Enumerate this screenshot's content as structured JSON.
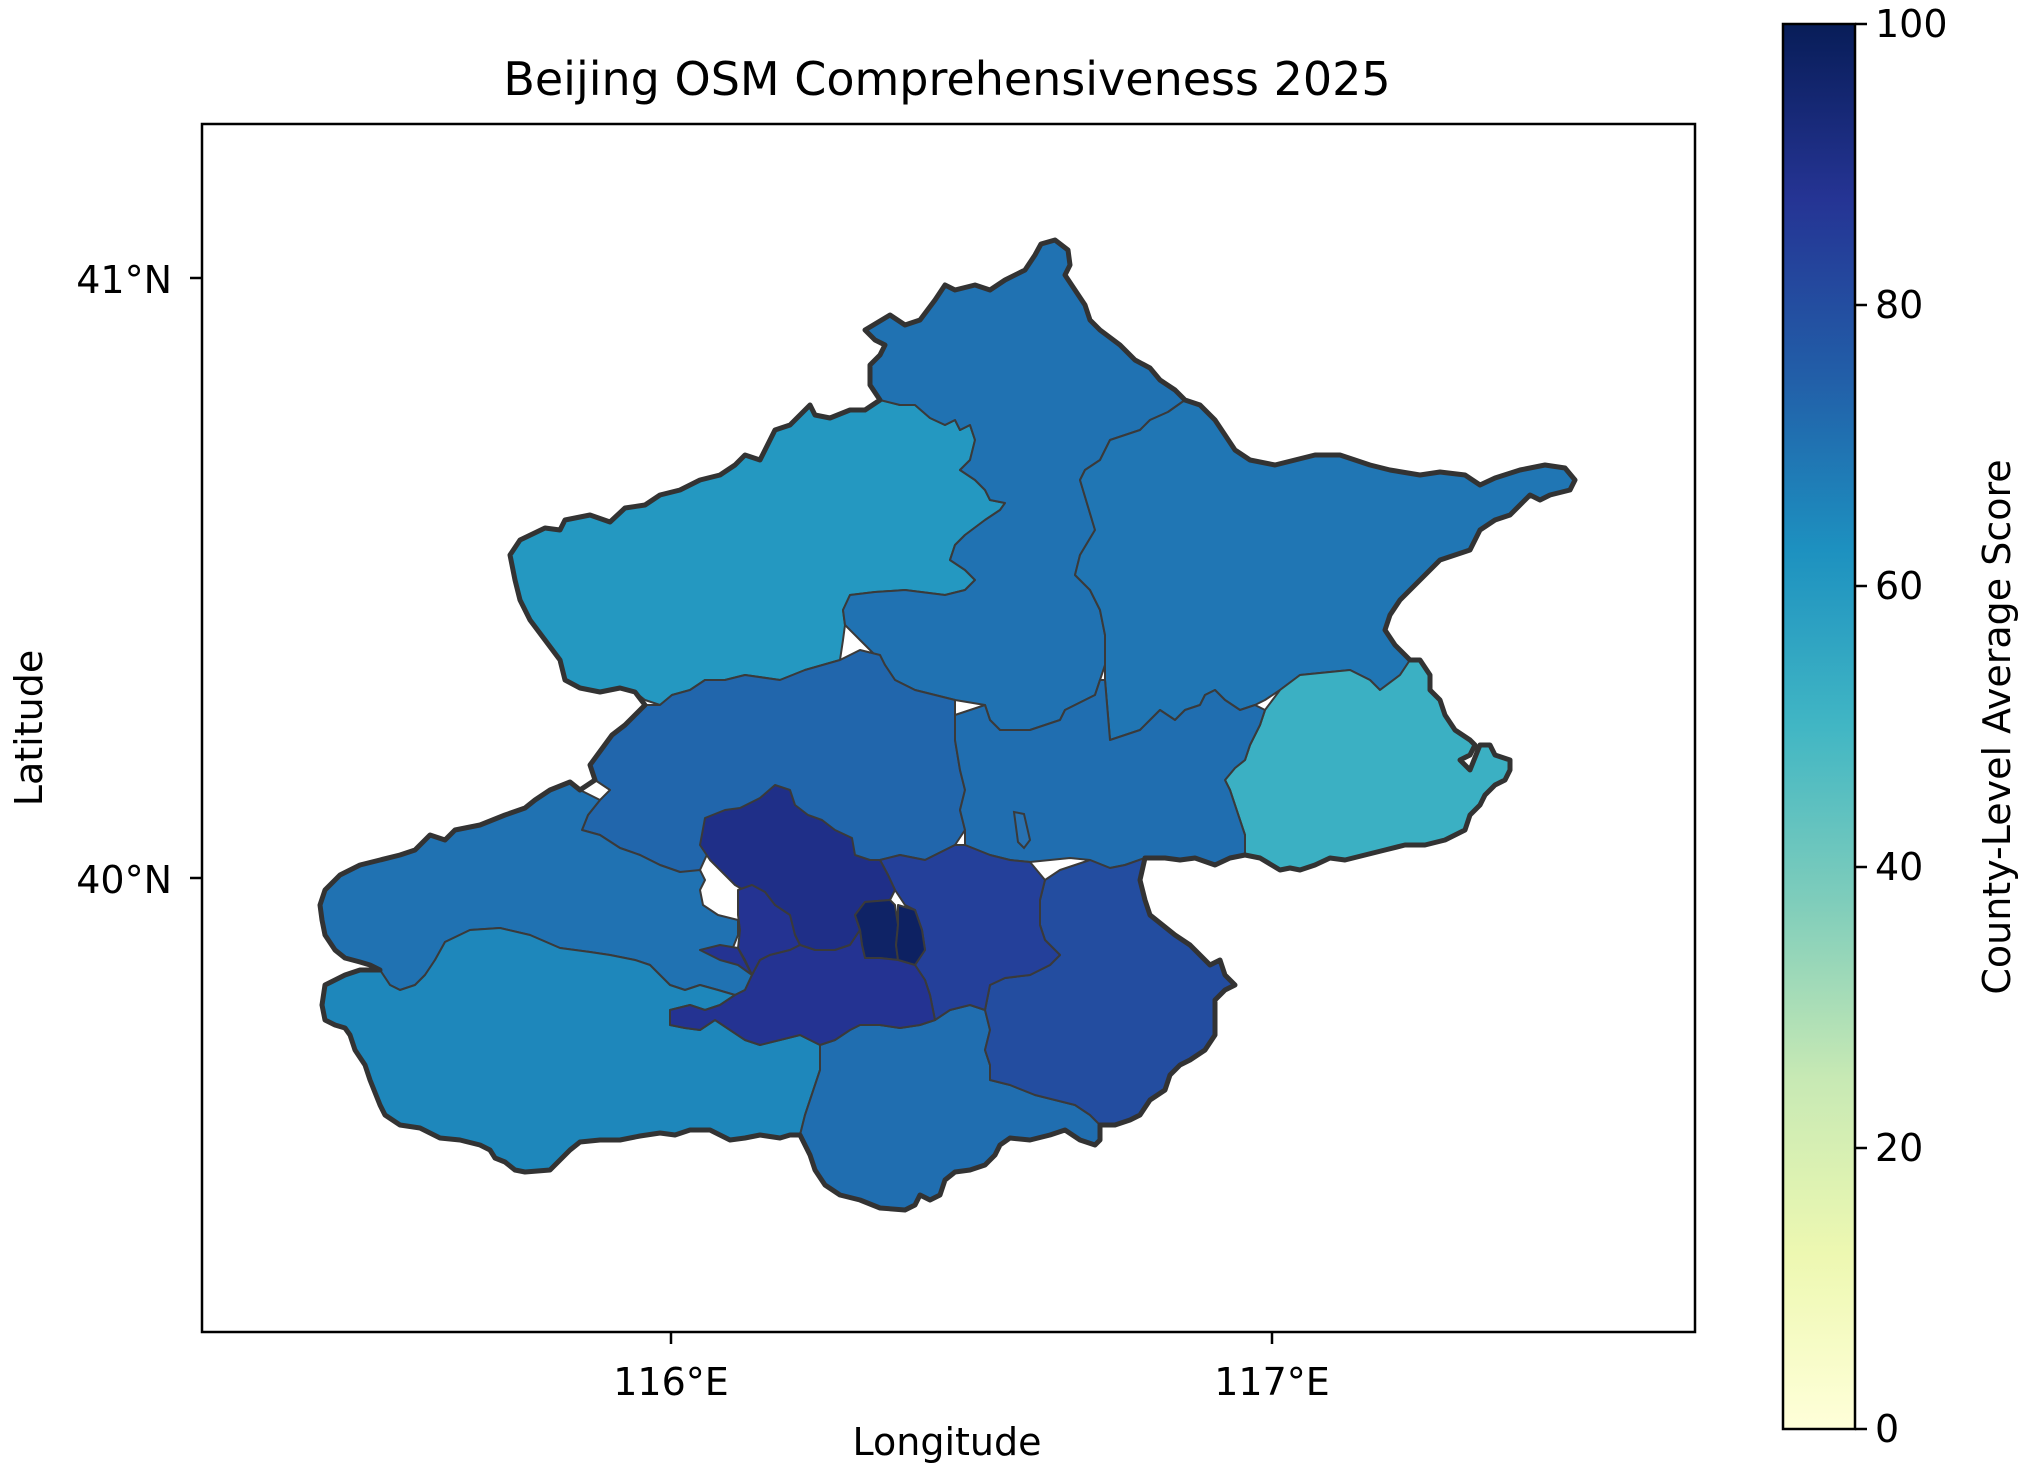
{
  "title": "Beijing OSM Comprehensiveness 2025",
  "x_axis": {
    "label": "Longitude",
    "ticks": [
      {
        "label": "116°E"
      },
      {
        "label": "117°E"
      }
    ]
  },
  "y_axis": {
    "label": "Latitude",
    "ticks": [
      {
        "label": "41°N"
      },
      {
        "label": "40°N"
      }
    ]
  },
  "colorbar": {
    "label": "County-Level Average Score",
    "colormap": "YlGnBu",
    "range": [
      0,
      100
    ],
    "ticks": [
      "0",
      "20",
      "40",
      "60",
      "80",
      "100"
    ],
    "stops": [
      "#ffffd9",
      "#edf8b1",
      "#c7e9b4",
      "#7fcdbb",
      "#41b6c4",
      "#1d91c0",
      "#225ea8",
      "#253494",
      "#081d58"
    ]
  },
  "chart_data": {
    "type": "choropleth",
    "title": "Beijing OSM Comprehensiveness 2025",
    "xlabel": "Longitude",
    "ylabel": "Latitude",
    "color_range": [
      0,
      100
    ],
    "regions": [
      {
        "id": "yanqing",
        "score": 60
      },
      {
        "id": "huairou",
        "score": 70
      },
      {
        "id": "miyun",
        "score": 69
      },
      {
        "id": "pinggu",
        "score": 52
      },
      {
        "id": "changping",
        "score": 73
      },
      {
        "id": "shunyi",
        "score": 71
      },
      {
        "id": "mentougou",
        "score": 70
      },
      {
        "id": "haidian",
        "score": 90
      },
      {
        "id": "shijingshan",
        "score": 88
      },
      {
        "id": "chaoyang",
        "score": 84
      },
      {
        "id": "xicheng",
        "score": 97
      },
      {
        "id": "dongcheng",
        "score": 98
      },
      {
        "id": "fengtai",
        "score": 88
      },
      {
        "id": "fangshan",
        "score": 65
      },
      {
        "id": "daxing",
        "score": 71
      },
      {
        "id": "tongzhou",
        "score": 80
      }
    ]
  }
}
